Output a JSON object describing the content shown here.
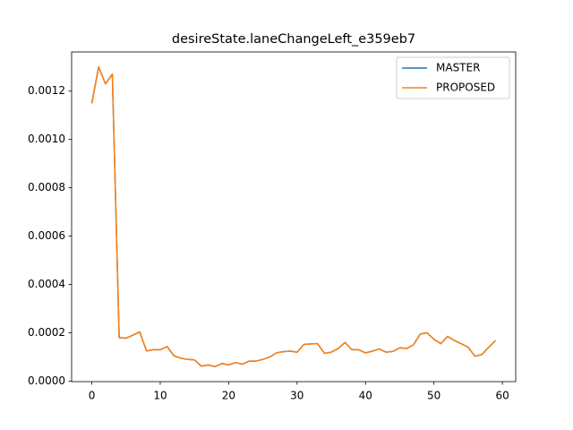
{
  "chart_data": {
    "type": "line",
    "title": "desireState.laneChangeLeft_e359eb7",
    "x": [
      0,
      1,
      2,
      3,
      4,
      5,
      6,
      7,
      8,
      9,
      10,
      11,
      12,
      13,
      14,
      15,
      16,
      17,
      18,
      19,
      20,
      21,
      22,
      23,
      24,
      25,
      26,
      27,
      28,
      29,
      30,
      31,
      32,
      33,
      34,
      35,
      36,
      37,
      38,
      39,
      40,
      41,
      42,
      43,
      44,
      45,
      46,
      47,
      48,
      49,
      50,
      51,
      52,
      53,
      54,
      55,
      56,
      57,
      58,
      59
    ],
    "series": [
      {
        "name": "MASTER",
        "color": "#1f77b4",
        "values": [
          0.00115,
          0.0013,
          0.00123,
          0.00127,
          0.00018,
          0.000178,
          0.00019,
          0.000204,
          0.000125,
          0.00013,
          0.00013,
          0.000143,
          0.000105,
          9.5e-05,
          9e-05,
          8.8e-05,
          6.2e-05,
          6.7e-05,
          6e-05,
          7.3e-05,
          6.7e-05,
          7.7e-05,
          7e-05,
          8.3e-05,
          8.3e-05,
          9e-05,
          0.0001,
          0.000117,
          0.000122,
          0.000124,
          0.00012,
          0.000152,
          0.000154,
          0.000155,
          0.000115,
          0.00012,
          0.000135,
          0.00016,
          0.00013,
          0.00013,
          0.000117,
          0.000124,
          0.000133,
          0.00012,
          0.000123,
          0.000138,
          0.000135,
          0.00015,
          0.000195,
          0.0002,
          0.000173,
          0.000155,
          0.000185,
          0.000168,
          0.000155,
          0.00014,
          0.000103,
          0.00011,
          0.00014,
          0.000168
        ]
      },
      {
        "name": "PROPOSED",
        "color": "#ff7f0e",
        "values": [
          0.00115,
          0.0013,
          0.00123,
          0.00127,
          0.00018,
          0.000178,
          0.00019,
          0.000204,
          0.000125,
          0.00013,
          0.00013,
          0.000143,
          0.000105,
          9.5e-05,
          9e-05,
          8.8e-05,
          6.2e-05,
          6.7e-05,
          6e-05,
          7.3e-05,
          6.7e-05,
          7.7e-05,
          7e-05,
          8.3e-05,
          8.3e-05,
          9e-05,
          0.0001,
          0.000117,
          0.000122,
          0.000124,
          0.00012,
          0.000152,
          0.000154,
          0.000155,
          0.000115,
          0.00012,
          0.000135,
          0.00016,
          0.00013,
          0.00013,
          0.000117,
          0.000124,
          0.000133,
          0.00012,
          0.000123,
          0.000138,
          0.000135,
          0.00015,
          0.000195,
          0.0002,
          0.000173,
          0.000155,
          0.000185,
          0.000168,
          0.000155,
          0.00014,
          0.000103,
          0.00011,
          0.00014,
          0.000168
        ]
      }
    ],
    "xlim": [
      -2.95,
      61.95
    ],
    "xticks": [
      0,
      10,
      20,
      30,
      40,
      50,
      60
    ],
    "ylim": [
      -2e-06,
      0.001362
    ],
    "yticks": [
      {
        "value": 0,
        "label": "0.0000"
      },
      {
        "value": 0.0002,
        "label": "0.0002"
      },
      {
        "value": 0.0004,
        "label": "0.0004"
      },
      {
        "value": 0.0006,
        "label": "0.0006"
      },
      {
        "value": 0.0008,
        "label": "0.0008"
      },
      {
        "value": 0.001,
        "label": "0.0010"
      },
      {
        "value": 0.0012,
        "label": "0.0012"
      }
    ],
    "grid": false,
    "legend": "upper-right"
  }
}
